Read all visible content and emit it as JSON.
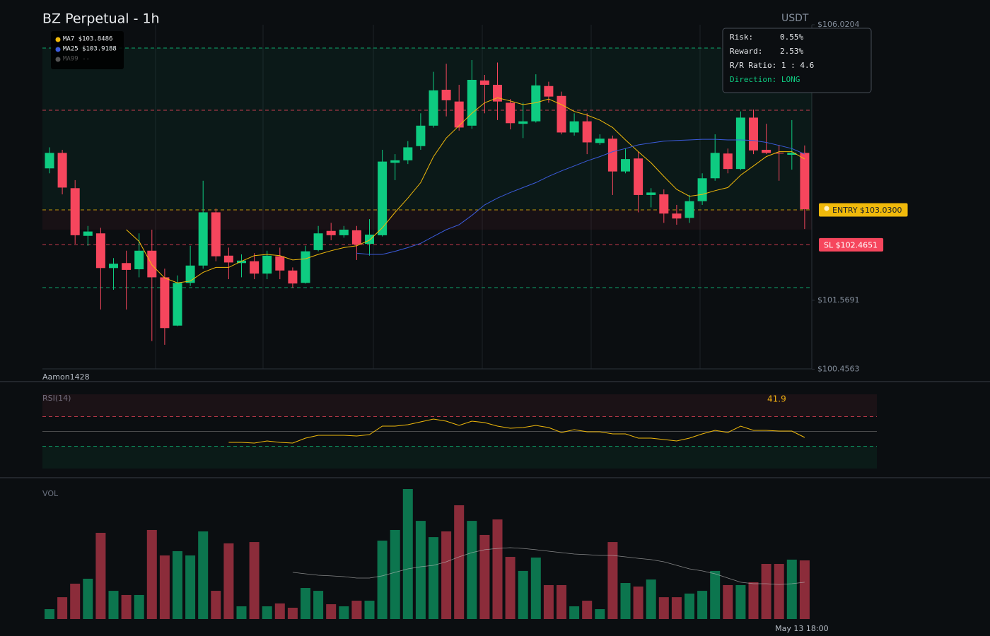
{
  "chart_data": [
    {
      "type": "candlestick",
      "title": "BZ Perpetual - 1h",
      "currency": "USDT",
      "watermark": "Aamon1428",
      "categories": [
        null,
        null,
        null,
        null,
        null,
        null,
        null,
        null,
        null,
        null,
        null,
        null,
        null,
        null,
        null,
        null,
        null,
        null,
        null,
        null,
        null,
        null,
        null,
        null,
        null,
        null,
        null,
        null,
        null,
        null,
        null,
        null,
        null,
        null,
        null,
        null,
        null,
        null,
        null,
        null,
        null,
        null,
        null,
        null,
        null,
        null,
        null,
        null,
        null,
        null,
        null,
        null,
        null,
        null,
        null,
        null,
        null,
        null,
        null,
        "May 13 18:00"
      ],
      "open": [
        103.7,
        103.95,
        103.38,
        102.61,
        102.65,
        102.09,
        102.17,
        102.07,
        102.37,
        101.94,
        101.16,
        101.85,
        102.13,
        102.99,
        102.29,
        102.17,
        102.2,
        102.0,
        102.28,
        102.05,
        101.85,
        102.38,
        102.69,
        102.62,
        102.7,
        102.48,
        102.62,
        103.79,
        103.83,
        104.06,
        104.39,
        104.97,
        104.78,
        104.39,
        105.12,
        105.05,
        104.76,
        104.42,
        104.46,
        105.03,
        104.87,
        104.28,
        104.46,
        104.11,
        104.18,
        103.65,
        103.86,
        103.27,
        103.28,
        102.97,
        102.9,
        103.17,
        103.54,
        103.94,
        103.69,
        104.52,
        104.0,
        103.95,
        103.92,
        103.95
      ],
      "high": [
        104.04,
        104.0,
        103.51,
        102.77,
        102.74,
        102.25,
        102.37,
        102.65,
        102.71,
        102.08,
        101.97,
        102.45,
        103.5,
        103.05,
        102.42,
        102.31,
        102.33,
        102.37,
        102.42,
        102.1,
        102.45,
        102.77,
        102.82,
        102.77,
        102.77,
        102.88,
        104.0,
        103.93,
        104.14,
        104.59,
        105.26,
        105.39,
        105.05,
        105.45,
        105.21,
        105.41,
        104.82,
        104.76,
        105.22,
        105.1,
        104.94,
        104.59,
        104.59,
        104.25,
        104.23,
        104.02,
        103.97,
        103.38,
        103.36,
        103.11,
        103.27,
        103.62,
        104.25,
        104.02,
        104.62,
        104.65,
        104.42,
        104.08,
        104.48,
        104.07
      ],
      "low": [
        103.62,
        103.28,
        102.48,
        102.45,
        101.42,
        101.74,
        101.42,
        101.94,
        100.91,
        100.85,
        101.15,
        101.8,
        102.08,
        102.2,
        101.91,
        101.94,
        101.91,
        101.91,
        101.91,
        101.77,
        101.84,
        102.36,
        102.54,
        102.58,
        102.22,
        102.29,
        102.6,
        103.51,
        103.77,
        104.0,
        104.36,
        104.54,
        104.31,
        104.34,
        104.59,
        104.48,
        104.33,
        104.19,
        104.44,
        104.76,
        104.25,
        104.23,
        103.93,
        104.08,
        103.27,
        103.62,
        102.99,
        103.07,
        102.82,
        102.79,
        102.82,
        103.11,
        103.5,
        103.62,
        103.67,
        103.93,
        103.93,
        103.5,
        103.68,
        102.72
      ],
      "close": [
        103.95,
        103.39,
        102.62,
        102.68,
        102.09,
        102.16,
        102.06,
        102.37,
        101.94,
        101.12,
        101.85,
        102.13,
        102.99,
        102.28,
        102.18,
        102.21,
        102.0,
        102.29,
        102.05,
        101.84,
        102.36,
        102.65,
        102.62,
        102.71,
        102.47,
        102.63,
        103.81,
        103.83,
        104.04,
        104.39,
        104.96,
        104.8,
        104.36,
        105.13,
        105.05,
        104.78,
        104.43,
        104.46,
        105.04,
        104.86,
        104.28,
        104.46,
        104.12,
        104.18,
        103.65,
        103.85,
        103.27,
        103.31,
        102.97,
        102.89,
        103.17,
        103.54,
        103.95,
        103.69,
        104.52,
        103.99,
        103.95,
        103.94,
        103.95,
        103.04
      ],
      "up_color": "#0ecb81",
      "down_color": "#f6465d",
      "ylim": [
        100.4563,
        106.0204
      ],
      "yticks": [
        {
          "value": 106.0204,
          "label": "$106.0204"
        },
        {
          "value": 101.5691,
          "label": "$101.5691"
        },
        {
          "value": 100.4563,
          "label": "$100.4563"
        }
      ],
      "series": [
        {
          "name": "MA7",
          "value_label": "$103.8486",
          "color": "#f0b90b",
          "values": [
            null,
            null,
            null,
            null,
            null,
            null,
            102.71,
            102.52,
            102.14,
            101.93,
            101.85,
            101.88,
            102.02,
            102.1,
            102.1,
            102.2,
            102.29,
            102.31,
            102.29,
            102.22,
            102.24,
            102.31,
            102.37,
            102.42,
            102.45,
            102.54,
            102.74,
            102.99,
            103.22,
            103.47,
            103.89,
            104.19,
            104.39,
            104.59,
            104.76,
            104.84,
            104.79,
            104.73,
            104.76,
            104.82,
            104.73,
            104.62,
            104.56,
            104.48,
            104.36,
            104.16,
            103.97,
            103.79,
            103.57,
            103.36,
            103.25,
            103.28,
            103.34,
            103.39,
            103.59,
            103.74,
            103.89,
            103.97,
            103.97,
            103.85
          ]
        },
        {
          "name": "MA25",
          "value_label": "$103.9188",
          "color": "#3b5bdb",
          "values": [
            null,
            null,
            null,
            null,
            null,
            null,
            null,
            null,
            null,
            null,
            null,
            null,
            null,
            null,
            null,
            null,
            null,
            null,
            null,
            null,
            null,
            null,
            null,
            null,
            102.33,
            102.31,
            102.31,
            102.36,
            102.42,
            102.49,
            102.6,
            102.71,
            102.79,
            102.94,
            103.11,
            103.22,
            103.31,
            103.39,
            103.47,
            103.57,
            103.66,
            103.74,
            103.82,
            103.89,
            103.97,
            104.02,
            104.08,
            104.11,
            104.14,
            104.15,
            104.16,
            104.17,
            104.17,
            104.16,
            104.16,
            104.15,
            104.12,
            104.07,
            104.02,
            103.93
          ]
        },
        {
          "name": "MA99",
          "value_label": "--",
          "color": "#555555",
          "values": [
            null,
            null,
            null,
            null,
            null,
            null,
            null,
            null,
            null,
            null,
            null,
            null,
            null,
            null,
            null,
            null,
            null,
            null,
            null,
            null,
            null,
            null,
            null,
            null,
            null,
            null,
            null,
            null,
            null,
            null,
            null,
            null,
            null,
            null,
            null,
            null,
            null,
            null,
            null,
            null,
            null,
            null,
            null,
            null,
            null,
            null,
            null,
            null,
            null,
            null,
            null,
            null,
            null,
            null,
            null,
            null,
            null,
            null,
            null,
            null
          ]
        }
      ],
      "levels": [
        {
          "value": 105.644,
          "color": "#0ecb81"
        },
        {
          "value": 104.639,
          "color": "#f6465d"
        },
        {
          "value": 103.03,
          "color": "#f0b90b",
          "label": "ENTRY $103.0300"
        },
        {
          "value": 102.4651,
          "color": "#f6465d",
          "label": "SL $102.4651"
        },
        {
          "value": 101.774,
          "color": "#0ecb81"
        }
      ],
      "zones": [
        {
          "from": 103.03,
          "to": 105.644,
          "color": "#0ecb81"
        },
        {
          "from": 102.71,
          "to": 103.03,
          "color": "#f6465d"
        }
      ],
      "info": [
        {
          "label": "Risk:",
          "value": "0.55%"
        },
        {
          "label": "Reward:",
          "value": "2.53%"
        },
        {
          "label": "R/R Ratio:",
          "value": "1 : 4.6"
        },
        {
          "label": "Direction:",
          "value": "LONG"
        }
      ]
    },
    {
      "type": "line",
      "title": "RSI(14)",
      "last_label": "41.9",
      "color": "#f0b90b",
      "ylim": [
        0,
        100
      ],
      "levels": [
        {
          "value": 70,
          "color": "#f6465d"
        },
        {
          "value": 50,
          "color": "#666666"
        },
        {
          "value": 30,
          "color": "#0ecb81"
        }
      ],
      "values": [
        null,
        null,
        null,
        null,
        null,
        null,
        null,
        null,
        null,
        null,
        null,
        null,
        null,
        null,
        35.2,
        35.2,
        34.3,
        37.1,
        35.2,
        34.3,
        41.0,
        44.8,
        44.8,
        44.8,
        43.8,
        45.7,
        57.1,
        57.1,
        59.0,
        62.9,
        66.7,
        63.8,
        58.1,
        63.8,
        61.9,
        57.1,
        54.3,
        55.2,
        58.1,
        55.2,
        48.6,
        52.4,
        49.5,
        49.5,
        46.7,
        46.7,
        41.0,
        41.0,
        39.0,
        37.1,
        41.0,
        46.7,
        51.4,
        48.6,
        57.1,
        51.4,
        51.4,
        50.5,
        50.5,
        41.9
      ]
    },
    {
      "type": "bar",
      "title": "VOL",
      "ylim": [
        0,
        100
      ],
      "values": [
        7.6,
        16.8,
        27.2,
        31.0,
        66.3,
        21.7,
        18.5,
        18.5,
        68.5,
        48.9,
        52.2,
        48.9,
        67.4,
        21.7,
        58.2,
        9.8,
        59.2,
        9.8,
        12.0,
        8.7,
        23.9,
        21.7,
        11.4,
        9.8,
        14.1,
        14.1,
        60.3,
        68.5,
        100.0,
        75.5,
        63.0,
        67.4,
        87.5,
        75.5,
        64.7,
        76.6,
        47.8,
        37.0,
        47.3,
        26.1,
        26.1,
        9.8,
        14.1,
        7.6,
        59.2,
        27.7,
        25.0,
        30.4,
        16.8,
        16.8,
        19.6,
        21.7,
        37.0,
        26.1,
        26.1,
        28.3,
        42.4,
        42.4,
        45.7,
        45.1
      ],
      "ma": {
        "color": "#bbbbbb",
        "values": [
          null,
          null,
          null,
          null,
          null,
          null,
          null,
          null,
          null,
          null,
          null,
          null,
          null,
          null,
          null,
          null,
          null,
          null,
          null,
          35.9,
          34.8,
          33.7,
          33.2,
          32.6,
          31.5,
          31.5,
          33.2,
          35.9,
          38.6,
          40.2,
          41.3,
          44.0,
          47.8,
          51.1,
          53.3,
          54.3,
          54.9,
          54.3,
          53.3,
          52.2,
          51.1,
          50.0,
          49.5,
          48.9,
          48.9,
          47.8,
          46.7,
          45.7,
          44.0,
          41.3,
          38.6,
          37.0,
          34.8,
          31.5,
          28.3,
          27.2,
          27.2,
          26.6,
          27.2,
          28.3
        ]
      }
    }
  ]
}
